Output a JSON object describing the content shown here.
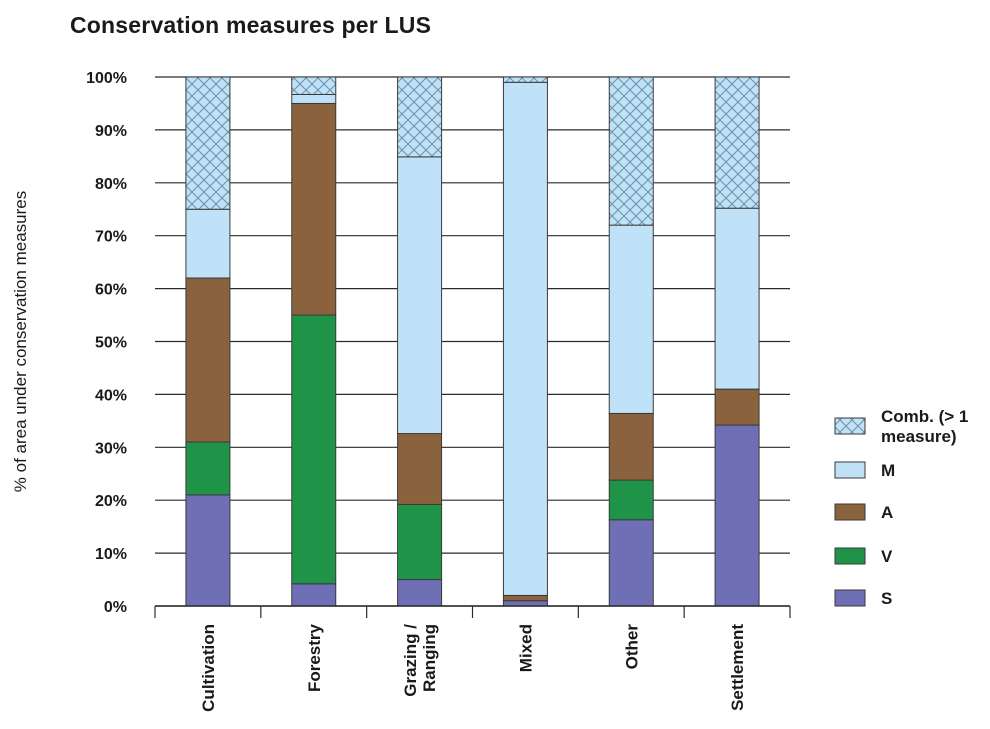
{
  "chart_data": {
    "type": "bar",
    "stacked": true,
    "title": "Conservation measures per LUS",
    "xlabel": "",
    "ylabel": "% of  area under conservation measures",
    "ylim": [
      0,
      100
    ],
    "yticks": [
      "0%",
      "10%",
      "20%",
      "30%",
      "40%",
      "50%",
      "60%",
      "70%",
      "80%",
      "90%",
      "100%"
    ],
    "grid": true,
    "legend_position": "right",
    "categories": [
      "Cultivation",
      "Forestry",
      "Grazing / Ranging",
      "Mixed",
      "Other",
      "Settlement"
    ],
    "category_lines": [
      [
        "Cultivation"
      ],
      [
        "Forestry"
      ],
      [
        "Grazing /",
        "Ranging"
      ],
      [
        "Mixed"
      ],
      [
        "Other"
      ],
      [
        "Settlement"
      ]
    ],
    "series": [
      {
        "name": "S",
        "color": "#6e6fb5",
        "pattern": "solid",
        "values": [
          21,
          4.2,
          5,
          1,
          16.3,
          34.2
        ]
      },
      {
        "name": "V",
        "color": "#1f9448",
        "pattern": "solid",
        "values": [
          10,
          50.8,
          14.2,
          0,
          7.5,
          0
        ]
      },
      {
        "name": "A",
        "color": "#8b623e",
        "pattern": "solid",
        "values": [
          31,
          40,
          13.4,
          1,
          12.6,
          6.8
        ]
      },
      {
        "name": "M",
        "color": "#bfe2f8",
        "pattern": "solid",
        "values": [
          13,
          1.7,
          52.3,
          97,
          35.6,
          34.2
        ]
      },
      {
        "name": "Comb. (> 1 measure)",
        "legend_lines": [
          "Comb. (> 1",
          "measure)"
        ],
        "color": "#bfe2f8",
        "pattern": "crosshatch",
        "values": [
          25,
          3.3,
          15.1,
          1,
          28,
          24.8
        ]
      }
    ]
  }
}
